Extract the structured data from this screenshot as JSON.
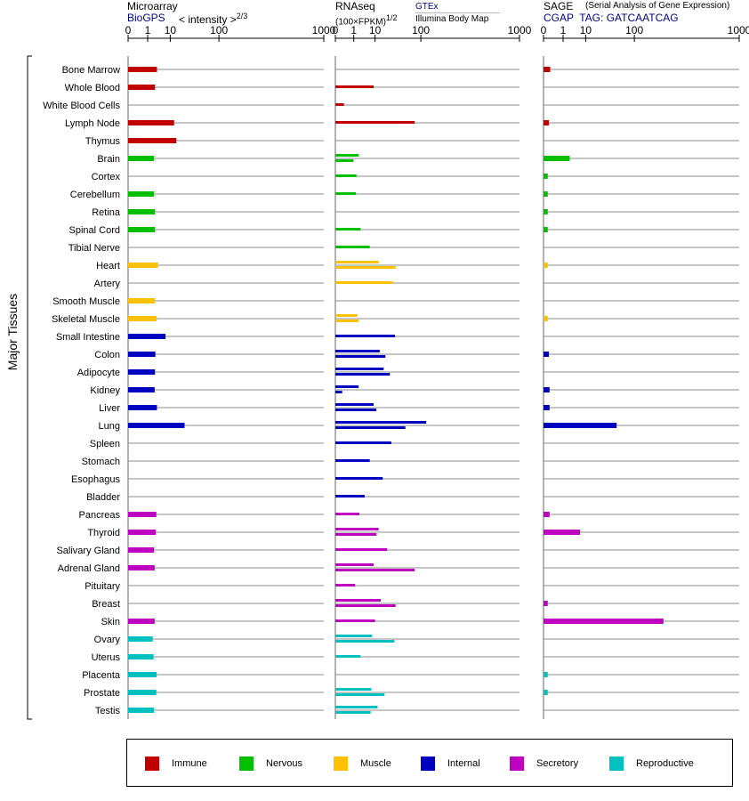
{
  "headers": {
    "microarray": {
      "title": "Microarray",
      "source": "BioGPS",
      "unit": "< intensity >",
      "exp": "2/3"
    },
    "rnaseq": {
      "title": "RNAseq",
      "unit": "(100×FPKM)",
      "exp": "1/2",
      "source_top": "GTEx",
      "source_bottom": "Illumina Body Map"
    },
    "sage": {
      "title": "SAGE",
      "subtitle": "(Serial Analysis of Gene Expression)",
      "tag": "CGAP  TAG: GATCAATCAG"
    }
  },
  "y_axis_label": "Major Tissues",
  "chart_data": {
    "type": "bar",
    "axis_ticks": [
      "0",
      "1",
      "10",
      "100",
      "1000"
    ],
    "xlim": [
      0,
      1000
    ],
    "scale": "power",
    "tissues": [
      "Bone Marrow",
      "Whole Blood",
      "White Blood Cells",
      "Lymph Node",
      "Thymus",
      "Brain",
      "Cortex",
      "Cerebellum",
      "Retina",
      "Spinal Cord",
      "Tibial Nerve",
      "Heart",
      "Artery",
      "Smooth Muscle",
      "Skeletal Muscle",
      "Small Intestine",
      "Colon",
      "Adipocyte",
      "Kidney",
      "Liver",
      "Lung",
      "Spleen",
      "Stomach",
      "Esophagus",
      "Bladder",
      "Pancreas",
      "Thyroid",
      "Salivary Gland",
      "Adrenal Gland",
      "Pituitary",
      "Breast",
      "Skin",
      "Ovary",
      "Uterus",
      "Placenta",
      "Prostate",
      "Testis"
    ],
    "groups": [
      "Immune",
      "Immune",
      "Immune",
      "Immune",
      "Immune",
      "Nervous",
      "Nervous",
      "Nervous",
      "Nervous",
      "Nervous",
      "Nervous",
      "Muscle",
      "Muscle",
      "Muscle",
      "Muscle",
      "Internal",
      "Internal",
      "Internal",
      "Internal",
      "Internal",
      "Internal",
      "Internal",
      "Internal",
      "Internal",
      "Internal",
      "Secretory",
      "Secretory",
      "Secretory",
      "Secretory",
      "Secretory",
      "Secretory",
      "Secretory",
      "Reproductive",
      "Reproductive",
      "Reproductive",
      "Reproductive",
      "Reproductive"
    ],
    "series": [
      {
        "name": "Microarray",
        "values": [
          [
            3.2
          ],
          [
            2.6
          ],
          [
            null
          ],
          [
            13
          ],
          [
            15
          ],
          [
            2.3
          ],
          [
            null
          ],
          [
            2.3
          ],
          [
            2.6
          ],
          [
            2.6
          ],
          [
            null
          ],
          [
            3.6
          ],
          [
            null
          ],
          [
            2.6
          ],
          [
            3.1
          ],
          [
            7
          ],
          [
            2.7
          ],
          [
            2.6
          ],
          [
            2.5
          ],
          [
            3.2
          ],
          [
            24
          ],
          [
            null
          ],
          [
            null
          ],
          [
            null
          ],
          [
            null
          ],
          [
            3
          ],
          [
            2.8
          ],
          [
            2.3
          ],
          [
            2.5
          ],
          [
            null
          ],
          [
            null
          ],
          [
            2.5
          ],
          [
            2
          ],
          [
            2.2
          ],
          [
            3.1
          ],
          [
            3
          ],
          [
            2.3
          ]
        ]
      },
      {
        "name": "RNAseq GTEx",
        "values": [
          [
            null
          ],
          [
            9
          ],
          [
            0.1
          ],
          [
            80
          ],
          [
            null
          ],
          [
            2
          ],
          [
            1.5
          ],
          [
            1.4
          ],
          [
            null
          ],
          [
            2.5
          ],
          [
            6.5
          ],
          [
            13
          ],
          [
            30
          ],
          [
            null
          ],
          [
            1.7
          ],
          [
            34
          ],
          [
            14
          ],
          [
            18
          ],
          [
            2
          ],
          [
            9
          ],
          [
            120
          ],
          [
            28
          ],
          [
            6.5
          ],
          [
            17
          ],
          [
            4
          ],
          [
            2.2
          ],
          [
            13
          ],
          [
            22
          ],
          [
            9
          ],
          [
            1.2
          ],
          [
            15
          ],
          [
            10
          ],
          [
            8
          ],
          [
            2.5
          ],
          [
            null
          ],
          [
            7.5
          ],
          [
            12
          ]
        ]
      },
      {
        "name": "RNAseq Illumina Body Map",
        "values": [
          [
            null
          ],
          [
            null
          ],
          [
            null
          ],
          [
            null
          ],
          [
            null
          ],
          [
            0.9
          ],
          [
            null
          ],
          [
            null
          ],
          [
            null
          ],
          [
            null
          ],
          [
            null
          ],
          [
            35
          ],
          [
            null
          ],
          [
            null
          ],
          [
            2
          ],
          [
            null
          ],
          [
            20
          ],
          [
            26
          ],
          [
            0.05
          ],
          [
            11
          ],
          [
            55
          ],
          [
            null
          ],
          [
            null
          ],
          [
            null
          ],
          [
            null
          ],
          [
            null
          ],
          [
            11
          ],
          [
            null
          ],
          [
            80
          ],
          [
            null
          ],
          [
            35
          ],
          [
            null
          ],
          [
            33
          ],
          [
            null
          ],
          [
            null
          ],
          [
            19
          ],
          [
            7
          ]
        ]
      },
      {
        "name": "SAGE",
        "values": [
          [
            0.04
          ],
          [
            null
          ],
          [
            null
          ],
          [
            0.02
          ],
          [
            null
          ],
          [
            2.4
          ],
          [
            0.01
          ],
          [
            0.01
          ],
          [
            0.01
          ],
          [
            0.01
          ],
          [
            null
          ],
          [
            0.01
          ],
          [
            null
          ],
          [
            null
          ],
          [
            0.01
          ],
          [
            null
          ],
          [
            0.02
          ],
          [
            null
          ],
          [
            0.03
          ],
          [
            0.03
          ],
          [
            52
          ],
          [
            null
          ],
          [
            null
          ],
          [
            null
          ],
          [
            null
          ],
          [
            0.03
          ],
          [
            6.5
          ],
          [
            null
          ],
          [
            null
          ],
          [
            null
          ],
          [
            0.01
          ],
          [
            230
          ],
          [
            null
          ],
          [
            null
          ],
          [
            0.01
          ],
          [
            0.01
          ],
          [
            null
          ]
        ]
      }
    ]
  },
  "legend": {
    "items": [
      {
        "label": "Immune",
        "color": "#c00000"
      },
      {
        "label": "Nervous",
        "color": "#00c000"
      },
      {
        "label": "Muscle",
        "color": "#ffc000"
      },
      {
        "label": "Internal",
        "color": "#0000c0"
      },
      {
        "label": "Secretory",
        "color": "#c000c0"
      },
      {
        "label": "Reproductive",
        "color": "#00c0c0"
      }
    ]
  }
}
